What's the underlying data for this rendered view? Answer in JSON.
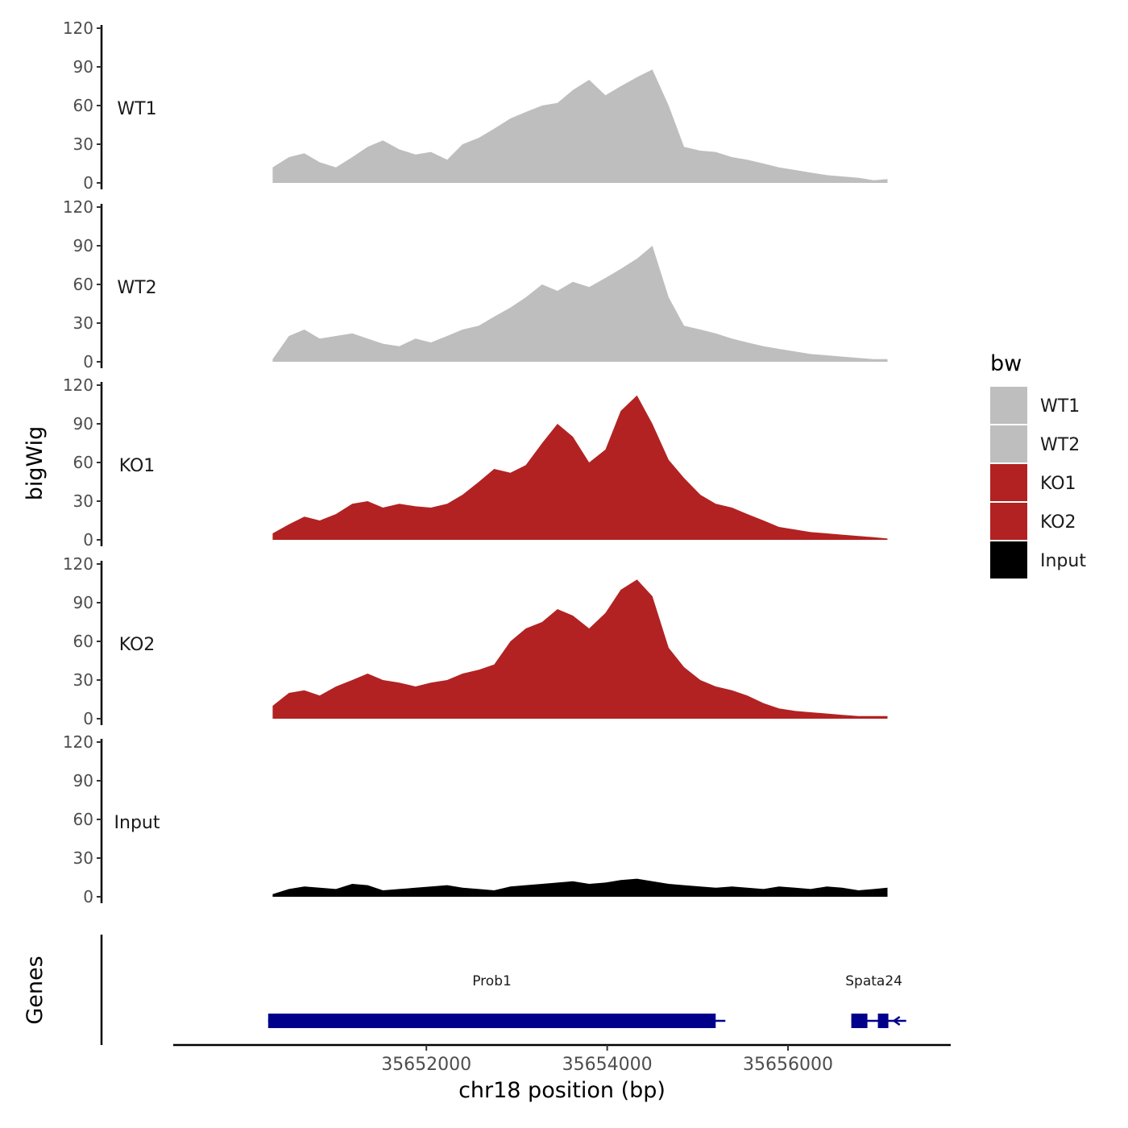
{
  "chart_data": {
    "type": "area",
    "title": "",
    "xlabel": "chr18 position (bp)",
    "ylabel": "bigWig",
    "genes_label": "Genes",
    "xlim": [
      35649200,
      35657800
    ],
    "ylim": [
      0,
      120
    ],
    "x_ticks": [
      35652000,
      35654000,
      35656000
    ],
    "x_tick_labels": [
      "35652000",
      "35654000",
      "35656000"
    ],
    "y_ticks": [
      0,
      30,
      60,
      90,
      120
    ],
    "y_tick_labels": [
      "0",
      "30",
      "60",
      "90",
      "120"
    ],
    "legend": {
      "title": "bw",
      "entries": [
        {
          "name": "WT1",
          "color": "#bebebe"
        },
        {
          "name": "WT2",
          "color": "#bebebe"
        },
        {
          "name": "KO1",
          "color": "#b22222"
        },
        {
          "name": "KO2",
          "color": "#b22222"
        },
        {
          "name": "Input",
          "color": "#000000"
        }
      ]
    },
    "x": [
      35650300,
      35650480,
      35650650,
      35650820,
      35651000,
      35651180,
      35651350,
      35651520,
      35651700,
      35651880,
      35652050,
      35652230,
      35652400,
      35652580,
      35652750,
      35652930,
      35653100,
      35653280,
      35653450,
      35653620,
      35653800,
      35653980,
      35654150,
      35654330,
      35654500,
      35654680,
      35654850,
      35655030,
      35655200,
      35655380,
      35655550,
      35655730,
      35655900,
      35656080,
      35656250,
      35656430,
      35656600,
      35656780,
      35656950,
      35657100
    ],
    "series": [
      {
        "name": "WT1",
        "color": "#bebebe",
        "values": [
          12,
          20,
          23,
          16,
          12,
          20,
          28,
          33,
          26,
          22,
          24,
          18,
          30,
          35,
          42,
          50,
          55,
          60,
          62,
          72,
          80,
          68,
          75,
          82,
          88,
          60,
          28,
          25,
          24,
          20,
          18,
          15,
          12,
          10,
          8,
          6,
          5,
          4,
          2,
          3
        ]
      },
      {
        "name": "WT2",
        "color": "#bebebe",
        "values": [
          2,
          20,
          25,
          18,
          20,
          22,
          18,
          14,
          12,
          18,
          15,
          20,
          25,
          28,
          35,
          42,
          50,
          60,
          55,
          62,
          58,
          65,
          72,
          80,
          90,
          50,
          28,
          25,
          22,
          18,
          15,
          12,
          10,
          8,
          6,
          5,
          4,
          3,
          2,
          2
        ]
      },
      {
        "name": "KO1",
        "color": "#b22222",
        "values": [
          5,
          12,
          18,
          15,
          20,
          28,
          30,
          25,
          28,
          26,
          25,
          28,
          35,
          45,
          55,
          52,
          58,
          75,
          90,
          80,
          60,
          70,
          100,
          112,
          90,
          62,
          48,
          35,
          28,
          25,
          20,
          15,
          10,
          8,
          6,
          5,
          4,
          3,
          2,
          1
        ]
      },
      {
        "name": "KO2",
        "color": "#b22222",
        "values": [
          10,
          20,
          22,
          18,
          25,
          30,
          35,
          30,
          28,
          25,
          28,
          30,
          35,
          38,
          42,
          60,
          70,
          75,
          85,
          80,
          70,
          82,
          100,
          108,
          95,
          55,
          40,
          30,
          25,
          22,
          18,
          12,
          8,
          6,
          5,
          4,
          3,
          2,
          2,
          2
        ]
      },
      {
        "name": "Input",
        "color": "#000000",
        "values": [
          2,
          6,
          8,
          7,
          6,
          10,
          9,
          5,
          6,
          7,
          8,
          9,
          7,
          6,
          5,
          8,
          9,
          10,
          11,
          12,
          10,
          11,
          13,
          14,
          12,
          10,
          9,
          8,
          7,
          8,
          7,
          6,
          8,
          7,
          6,
          8,
          7,
          5,
          6,
          7
        ]
      }
    ],
    "genes": [
      {
        "name": "Prob1",
        "start": 35650250,
        "end": 35655200,
        "strand": "-",
        "color": "#00008b"
      },
      {
        "name": "Spata24",
        "start": 35656700,
        "end": 35657200,
        "strand": "-",
        "color": "#00008b"
      }
    ]
  }
}
